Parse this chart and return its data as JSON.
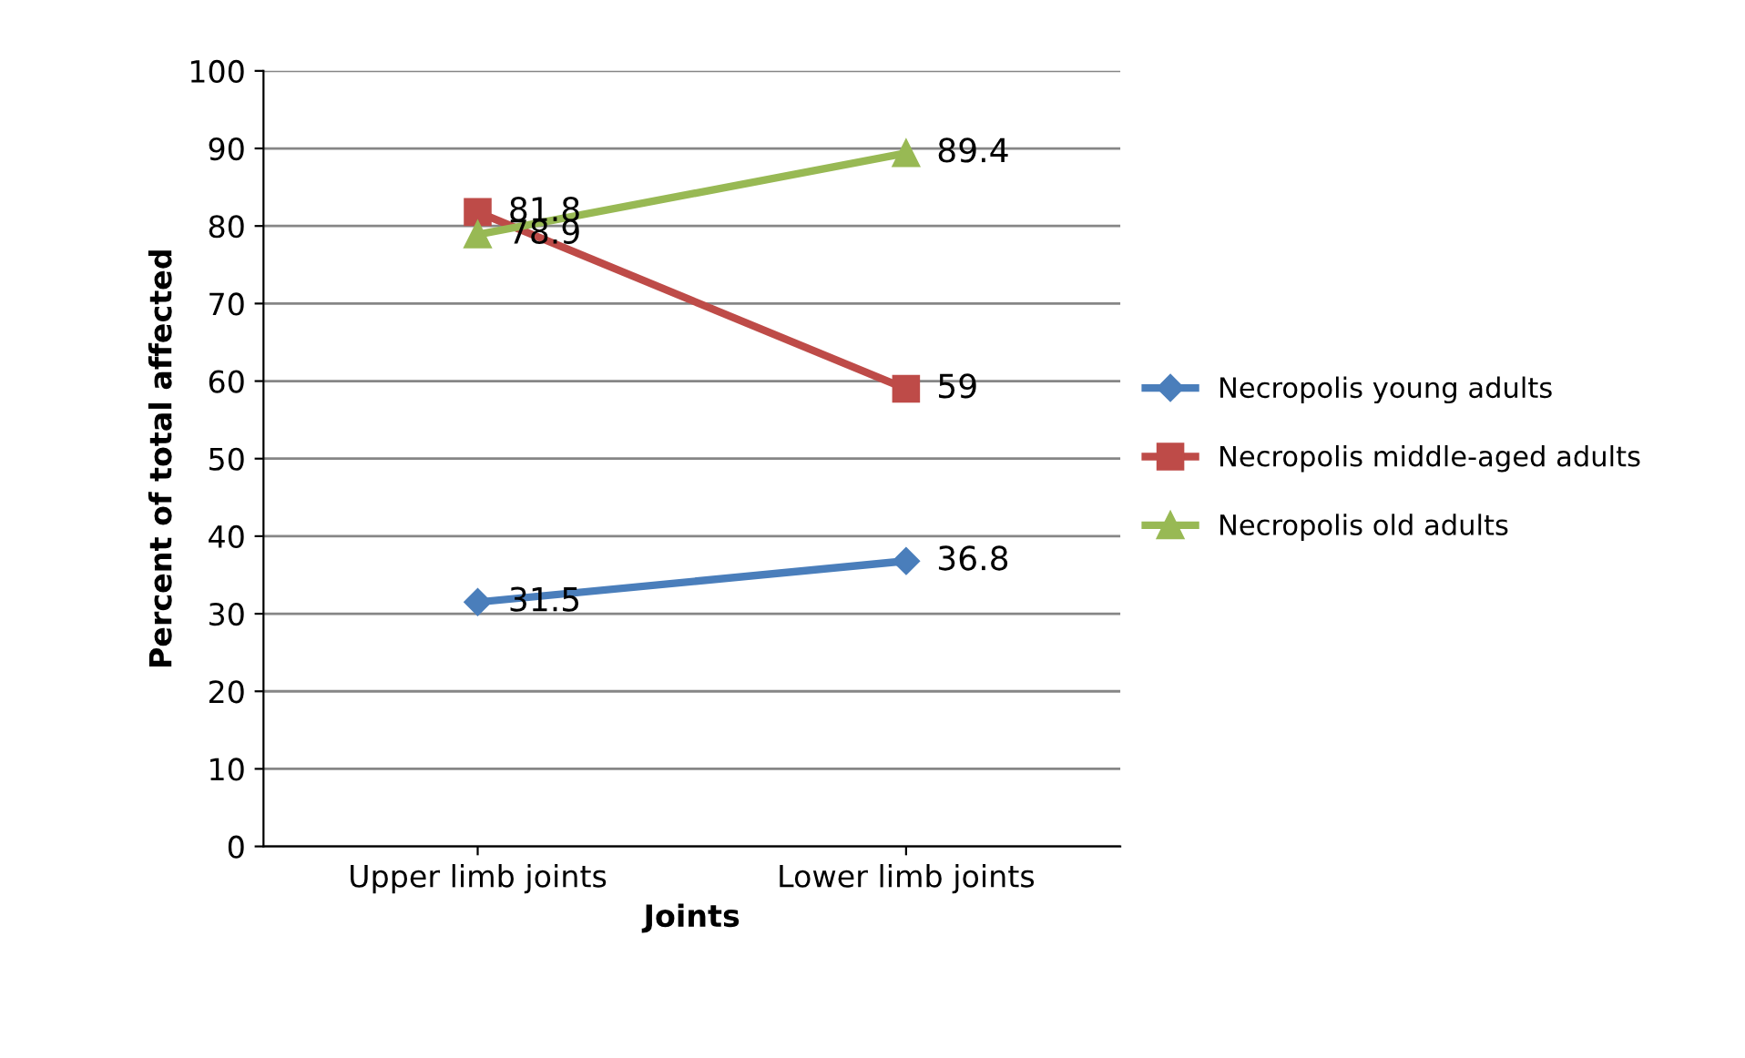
{
  "chart_data": {
    "type": "line",
    "xlabel": "Joints",
    "ylabel": "Percent of total affected",
    "categories": [
      "Upper limb joints",
      "Lower limb joints"
    ],
    "series": [
      {
        "name": "Necropolis young adults",
        "color": "#4a7ebb",
        "marker": "diamond",
        "values": [
          31.5,
          36.8
        ]
      },
      {
        "name": "Necropolis middle-aged adults",
        "color": "#be4b48",
        "marker": "square",
        "values": [
          81.8,
          59
        ]
      },
      {
        "name": "Necropolis old adults",
        "color": "#98b954",
        "marker": "triangle",
        "values": [
          78.9,
          89.4
        ]
      }
    ],
    "ylim": [
      0,
      100
    ],
    "yticks": [
      0,
      10,
      20,
      30,
      40,
      50,
      60,
      70,
      80,
      90,
      100
    ],
    "grid": "y",
    "legend": "right",
    "data_labels": true
  }
}
